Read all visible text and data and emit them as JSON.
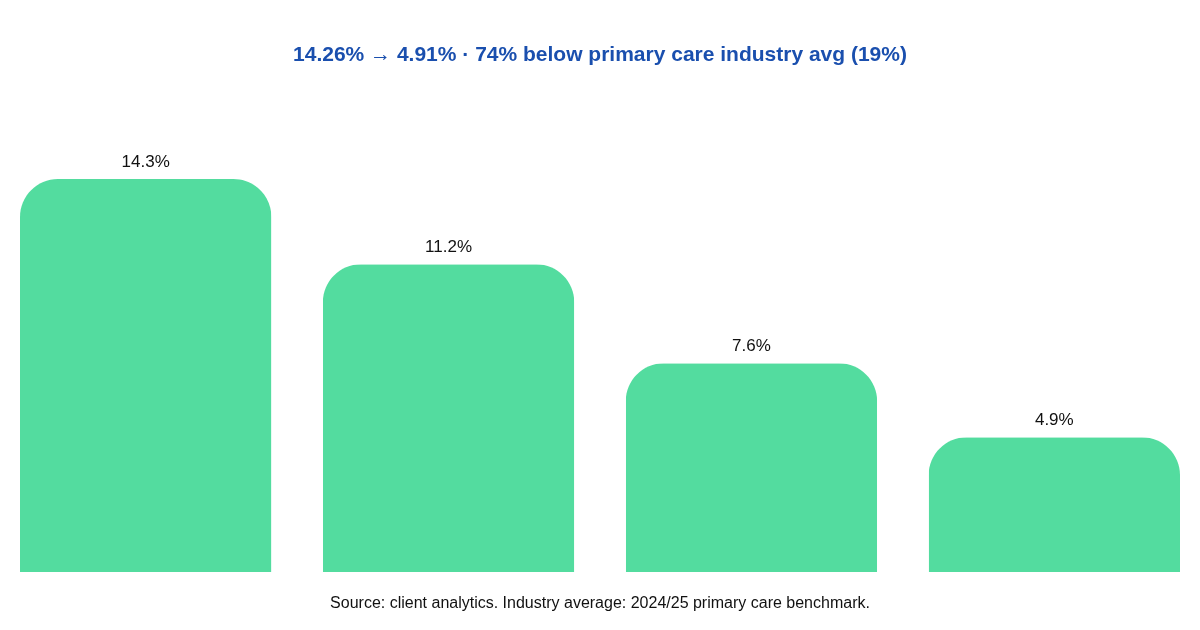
{
  "chart_data": {
    "type": "bar",
    "title": "14.26% → 4.91% · 74% below primary care industry avg (19%)",
    "categories": [
      null,
      null,
      null,
      null
    ],
    "values": [
      14.3,
      11.2,
      7.6,
      4.9
    ],
    "color": "#53dc9f",
    "data_labels": true,
    "value_labels": [
      "14.3%",
      "11.2%",
      "7.6%",
      "4.9%"
    ],
    "annotations": [
      "Source: client analytics. Industry average: 2024/25 primary care benchmark."
    ]
  }
}
